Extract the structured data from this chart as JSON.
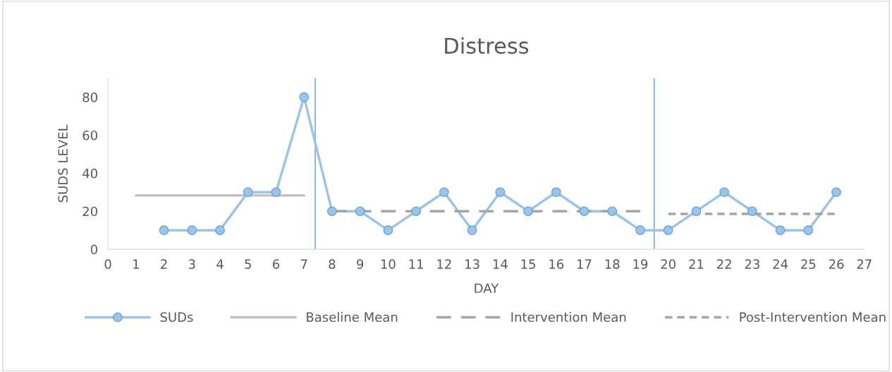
{
  "chart_data": {
    "type": "line",
    "title": "Distress",
    "xlabel": "DAY",
    "ylabel": "SUDS LEVEL",
    "xlim": [
      0,
      27
    ],
    "xticks": [
      0,
      1,
      2,
      3,
      4,
      5,
      6,
      7,
      8,
      9,
      10,
      11,
      12,
      13,
      14,
      15,
      16,
      17,
      18,
      19,
      20,
      21,
      22,
      23,
      24,
      25,
      26,
      27
    ],
    "ylim": [
      0,
      90
    ],
    "yticks": [
      0,
      20,
      40,
      60,
      80
    ],
    "grid": false,
    "legend": "bottom",
    "series": [
      {
        "name": "SUDs",
        "color": "#9dc3e6",
        "marker": "circle",
        "line_style": "solid",
        "x": [
          2,
          3,
          4,
          5,
          6,
          7,
          8,
          9,
          10,
          11,
          12,
          13,
          14,
          15,
          16,
          17,
          18,
          19,
          20,
          21,
          22,
          23,
          24,
          25,
          26
        ],
        "values": [
          10,
          10,
          10,
          30,
          30,
          80,
          20,
          20,
          10,
          20,
          30,
          10,
          30,
          20,
          30,
          20,
          20,
          10,
          10,
          20,
          30,
          20,
          10,
          10,
          30
        ]
      },
      {
        "name": "Baseline Mean",
        "color": "#bfbfbf",
        "marker": "none",
        "line_style": "solid",
        "x": [
          1,
          7
        ],
        "values": [
          28.3,
          28.3
        ]
      },
      {
        "name": "Intervention Mean",
        "color": "#a5a5a5",
        "marker": "none",
        "line_style": "dashed",
        "x": [
          8,
          19
        ],
        "values": [
          20,
          20
        ]
      },
      {
        "name": "Post-Intervention Mean",
        "color": "#a5a5a5",
        "marker": "none",
        "line_style": "dotted",
        "x": [
          20,
          26
        ],
        "values": [
          18.6,
          18.6
        ]
      }
    ],
    "ref_lines": [
      {
        "axis": "x",
        "value": 7.4,
        "color": "#5b9bd5"
      },
      {
        "axis": "x",
        "value": 19.5,
        "color": "#5b9bd5"
      }
    ]
  }
}
